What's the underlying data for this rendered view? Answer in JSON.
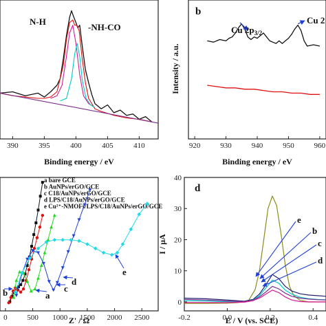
{
  "colors": {
    "black": "#111111",
    "red": "#e01010",
    "magenta": "#d6198f",
    "olive": "#8b8b1a",
    "blue": "#1f3fd8",
    "navy": "#202070",
    "green": "#1fdc1f",
    "cyan": "#22d8e8",
    "cyan2": "#00c8c8",
    "purple": "#7d2f8f"
  },
  "chart_data": [
    {
      "id": "a",
      "type": "line",
      "panel_label": "",
      "xlabel": "Binding energy / eV",
      "ylabel": "",
      "xlim": [
        388,
        413
      ],
      "xticks": [
        "390",
        "395",
        "400",
        "405",
        "410"
      ],
      "annotations": [
        "N-H",
        "-NH-CO"
      ],
      "series": [
        {
          "role": "raw",
          "x": [
            388,
            390,
            392,
            394,
            395,
            396,
            397,
            397.5,
            398,
            398.5,
            399,
            399.3,
            399.6,
            400,
            400.3,
            400.6,
            401,
            401.5,
            402,
            402.5,
            403,
            404,
            405,
            406,
            407,
            408,
            409,
            410,
            411,
            412
          ],
          "y": [
            0.34,
            0.35,
            0.32,
            0.34,
            0.31,
            0.35,
            0.4,
            0.45,
            0.6,
            0.78,
            0.92,
            0.97,
            0.93,
            0.88,
            0.84,
            0.86,
            0.7,
            0.52,
            0.42,
            0.33,
            0.26,
            0.22,
            0.25,
            0.19,
            0.21,
            0.17,
            0.18,
            0.14,
            0.16,
            0.12
          ]
        },
        {
          "role": "envelope",
          "x": [
            388,
            390,
            392,
            394,
            395,
            396,
            397,
            398,
            398.5,
            399,
            399.5,
            399.8,
            400.1,
            400.5,
            401,
            401.5,
            402,
            403,
            404,
            406,
            408,
            410,
            412
          ],
          "y": [
            0.34,
            0.32,
            0.31,
            0.3,
            0.3,
            0.31,
            0.35,
            0.55,
            0.75,
            0.88,
            0.9,
            0.86,
            0.86,
            0.82,
            0.6,
            0.42,
            0.3,
            0.22,
            0.2,
            0.17,
            0.15,
            0.14,
            0.12
          ]
        },
        {
          "role": "peak-NH",
          "x": [
            396,
            397,
            397.8,
            398.5,
            399,
            399.5,
            400,
            400.6,
            401.2,
            402,
            403
          ],
          "y": [
            0.3,
            0.32,
            0.4,
            0.62,
            0.8,
            0.86,
            0.72,
            0.48,
            0.32,
            0.26,
            0.23
          ]
        },
        {
          "role": "peak-NHCO",
          "x": [
            397.5,
            398.5,
            399.3,
            399.8,
            400.2,
            400.6,
            401,
            401.6,
            402.3,
            403
          ],
          "y": [
            0.28,
            0.3,
            0.45,
            0.64,
            0.72,
            0.62,
            0.44,
            0.3,
            0.25,
            0.23
          ]
        },
        {
          "role": "baseline",
          "x": [
            388,
            413
          ],
          "y": [
            0.34,
            0.11
          ]
        }
      ]
    },
    {
      "id": "b",
      "type": "line",
      "panel_label": "b",
      "xlabel": "Binding energy / eV",
      "ylabel": "Intensity / a.u.",
      "xlim": [
        918,
        962
      ],
      "xticks": [
        "920",
        "930",
        "940",
        "950",
        "960"
      ],
      "annotations": [
        "Cu 2p3/2",
        "Cu 2"
      ],
      "series": [
        {
          "role": "upper",
          "x": [
            924,
            926,
            928,
            930,
            931,
            932,
            933,
            934,
            935,
            936,
            937,
            938,
            939,
            940,
            941,
            942,
            943,
            944,
            945,
            946,
            947,
            948,
            949,
            950,
            951,
            952,
            953,
            954,
            955,
            956,
            958,
            960
          ],
          "y": [
            0.74,
            0.73,
            0.75,
            0.74,
            0.76,
            0.77,
            0.8,
            0.84,
            0.87,
            0.83,
            0.77,
            0.75,
            0.77,
            0.76,
            0.78,
            0.8,
            0.77,
            0.74,
            0.73,
            0.72,
            0.74,
            0.72,
            0.74,
            0.76,
            0.79,
            0.83,
            0.86,
            0.82,
            0.74,
            0.7,
            0.71,
            0.7
          ]
        },
        {
          "role": "lower",
          "x": [
            924,
            927,
            930,
            933,
            936,
            939,
            942,
            945,
            948,
            951,
            954,
            957,
            960
          ],
          "y": [
            0.4,
            0.39,
            0.38,
            0.38,
            0.37,
            0.37,
            0.36,
            0.35,
            0.35,
            0.34,
            0.34,
            0.33,
            0.33
          ]
        }
      ]
    },
    {
      "id": "c",
      "type": "scatter",
      "panel_label": "",
      "xlabel": "Z' / Ω",
      "ylabel": "",
      "xlim": [
        -100,
        2800
      ],
      "xticks": [
        "0",
        "500",
        "1000",
        "1500",
        "2000",
        "2500"
      ],
      "legend": [
        "a bare GCE",
        "b AuNPs/erGO/GCE",
        "c C18/AuNPs/erGO/GCE",
        "d LPS/C18/AuNPs/erGO/GCE",
        "e Cu²⁺-NMOFs/LPS/C18/AuNPs/erGO/GCE"
      ],
      "curve_labels": [
        "a",
        "b",
        "c",
        "d",
        "e"
      ],
      "series": [
        {
          "name": "a",
          "x": [
            80,
            120,
            160,
            200,
            240,
            280,
            320,
            360,
            400,
            440,
            480,
            520,
            560,
            600,
            640,
            680
          ],
          "y": [
            60,
            110,
            150,
            180,
            200,
            220,
            260,
            320,
            400,
            480,
            580,
            690,
            800,
            920,
            1050,
            1180
          ]
        },
        {
          "name": "b",
          "x": [
            60,
            100,
            140,
            180,
            230,
            280,
            330,
            380,
            430,
            480,
            530,
            580,
            630,
            680
          ],
          "y": [
            50,
            100,
            160,
            190,
            170,
            150,
            180,
            260,
            360,
            460,
            560,
            660,
            760,
            870
          ]
        },
        {
          "name": "c",
          "x": [
            150,
            200,
            260,
            330,
            400,
            470,
            540,
            600,
            660,
            720,
            780,
            840,
            900
          ],
          "y": [
            100,
            260,
            340,
            330,
            250,
            160,
            180,
            280,
            400,
            520,
            640,
            760,
            870
          ]
        },
        {
          "name": "d",
          "x": [
            200,
            300,
            400,
            500,
            600,
            700,
            800,
            880,
            950,
            1050,
            1150,
            1250,
            1350,
            1450,
            1550
          ],
          "y": [
            120,
            320,
            460,
            540,
            520,
            420,
            250,
            170,
            240,
            380,
            530,
            680,
            830,
            970,
            1110
          ]
        },
        {
          "name": "e",
          "x": [
            180,
            300,
            450,
            600,
            750,
            900,
            1050,
            1200,
            1350,
            1500,
            1650,
            1800,
            1950,
            2050,
            2150,
            2300,
            2450,
            2600
          ],
          "y": [
            150,
            330,
            470,
            560,
            620,
            640,
            640,
            640,
            630,
            600,
            560,
            520,
            500,
            520,
            600,
            740,
            880,
            980
          ]
        }
      ]
    },
    {
      "id": "d",
      "type": "line",
      "panel_label": "d",
      "xlabel": "E / V (vs. SCE)",
      "ylabel": "I / μA",
      "xlim": [
        -0.2,
        0.46
      ],
      "ylim": [
        -2,
        40
      ],
      "xticks": [
        "-0.2",
        "0.0",
        "0.2",
        "0.4"
      ],
      "yticks": [
        "0",
        "10",
        "20",
        "30",
        "40"
      ],
      "curve_labels": [
        "e",
        "b",
        "c",
        "d"
      ],
      "series": [
        {
          "x": [
            -0.2,
            -0.1,
            0,
            0.05,
            0.1,
            0.13,
            0.15,
            0.17,
            0.19,
            0.21,
            0.23,
            0.25,
            0.27,
            0.29,
            0.31,
            0.34,
            0.38,
            0.42,
            0.46
          ],
          "y": [
            -0.5,
            -0.5,
            -0.4,
            -0.2,
            0.5,
            4,
            10,
            20,
            30,
            34,
            31,
            22,
            12,
            5,
            2,
            0.5,
            0,
            0,
            0
          ]
        },
        {
          "x": [
            -0.2,
            -0.1,
            0,
            0.08,
            0.12,
            0.15,
            0.18,
            0.21,
            0.24,
            0.27,
            0.3,
            0.34,
            0.38,
            0.42,
            0.46
          ],
          "y": [
            1.2,
            1.0,
            0.6,
            0.2,
            0.8,
            2.5,
            5.5,
            8.8,
            7.5,
            5.0,
            3.5,
            2.6,
            2.2,
            2.0,
            1.8
          ]
        },
        {
          "x": [
            -0.2,
            -0.1,
            0,
            0.08,
            0.12,
            0.15,
            0.18,
            0.21,
            0.24,
            0.27,
            0.3,
            0.34,
            0.38,
            0.42,
            0.46
          ],
          "y": [
            0.4,
            0.3,
            0.1,
            0,
            0.6,
            2.0,
            4.5,
            7.0,
            6.0,
            3.8,
            2.5,
            1.5,
            1.0,
            0.8,
            0.7
          ]
        },
        {
          "x": [
            -0.2,
            -0.1,
            0,
            0.08,
            0.12,
            0.15,
            0.18,
            0.21,
            0.24,
            0.27,
            0.3,
            0.34,
            0.38,
            0.42,
            0.46
          ],
          "y": [
            0.8,
            0.6,
            0.3,
            0.1,
            0.5,
            1.6,
            3.2,
            5.0,
            4.2,
            2.8,
            1.8,
            1.2,
            0.9,
            0.7,
            0.6
          ]
        },
        {
          "x": [
            -0.2,
            -0.1,
            0,
            0.08,
            0.12,
            0.15,
            0.18,
            0.21,
            0.24,
            0.27,
            0.3,
            0.34,
            0.38,
            0.42,
            0.46
          ],
          "y": [
            -0.2,
            -0.2,
            -0.2,
            -0.1,
            0.4,
            1.2,
            2.5,
            3.8,
            3.0,
            1.6,
            0.6,
            0.1,
            0,
            0,
            0
          ]
        }
      ]
    }
  ]
}
